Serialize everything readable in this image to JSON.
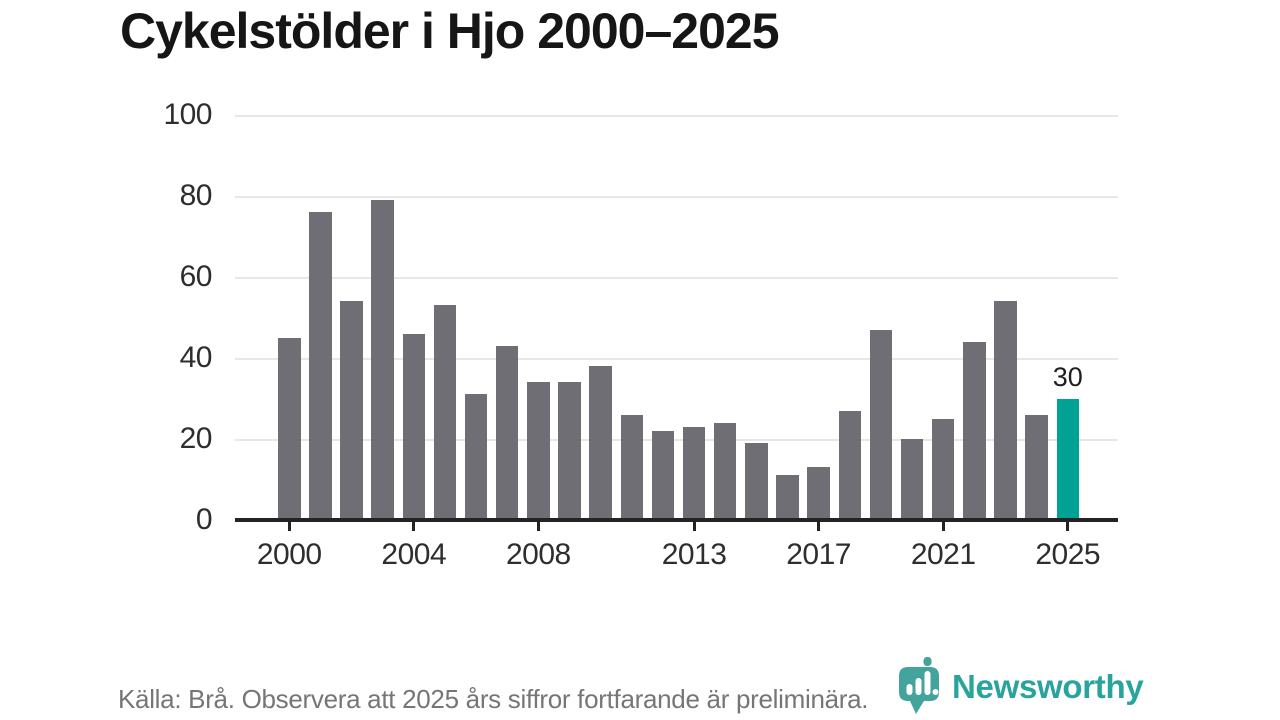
{
  "title": "Cykelstölder i Hjo 2000–2025",
  "chart_data": {
    "type": "bar",
    "title": "Cykelstölder i Hjo 2000–2025",
    "x": [
      2000,
      2001,
      2002,
      2003,
      2004,
      2005,
      2006,
      2007,
      2008,
      2009,
      2010,
      2011,
      2012,
      2013,
      2014,
      2015,
      2016,
      2017,
      2018,
      2019,
      2020,
      2021,
      2022,
      2023,
      2024,
      2025
    ],
    "values": [
      45,
      76,
      54,
      79,
      46,
      53,
      31,
      43,
      34,
      34,
      38,
      26,
      22,
      23,
      24,
      19,
      11,
      13,
      27,
      47,
      20,
      25,
      44,
      54,
      26,
      30
    ],
    "ylim": [
      0,
      100
    ],
    "y_ticks": [
      0,
      20,
      40,
      60,
      80,
      100
    ],
    "x_tick_labels": [
      "2000",
      "2004",
      "2008",
      "2013",
      "2017",
      "2021",
      "2025"
    ],
    "grid": "horizontal",
    "legend": "none",
    "xlabel": "",
    "ylabel": "",
    "bar_color": "#6f6e74",
    "highlight": {
      "year": 2025,
      "value": 30,
      "label": "30",
      "color": "#00a294"
    }
  },
  "footer": {
    "source_text": "Källa: Brå. Observera att 2025 års siffror fortfarande är preliminära."
  },
  "brand": {
    "name": "Newsworthy",
    "text_color": "#29a49d",
    "icon_color": "#45a39e",
    "icon": "newsworthy-bubble-barchart-icon"
  },
  "colors": {
    "background": "#ffffff",
    "title_text": "#161616",
    "axis_text": "#2e2e2e",
    "gridline": "#e7e7e7",
    "axis_line": "#232323",
    "source_text": "#767676"
  }
}
